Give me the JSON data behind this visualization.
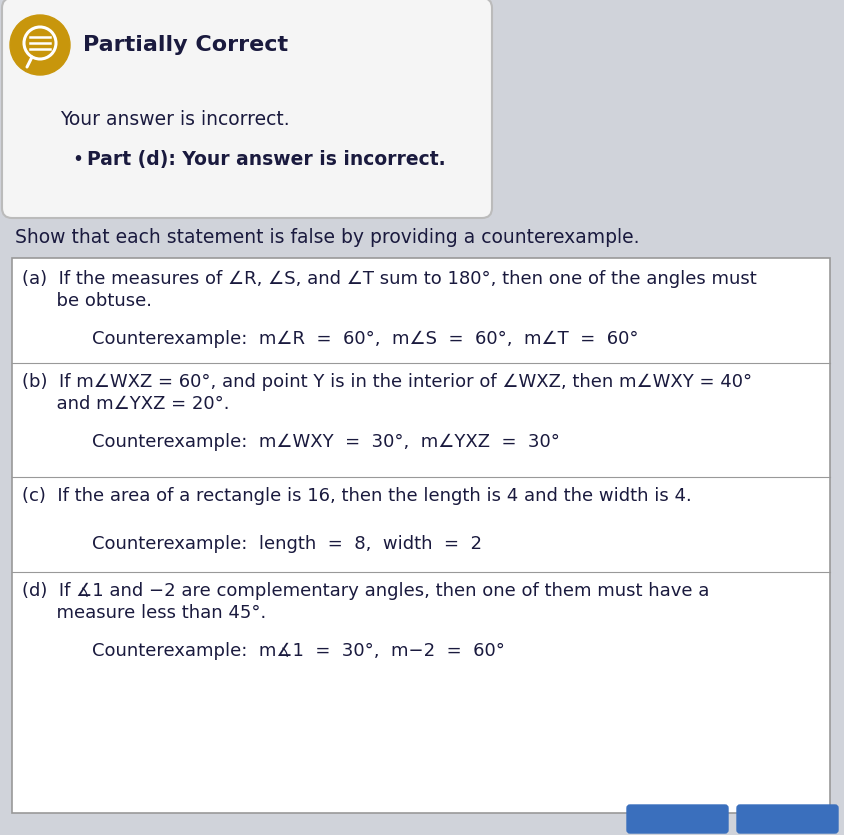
{
  "background_color": "#d0d3da",
  "header_box_bg": "#f5f5f5",
  "header_box_border": "#bbbbbb",
  "icon_color": "#c8960c",
  "title_text": "Partially Correct",
  "title_color": "#1a1a3e",
  "body_text_color": "#1a1a3e",
  "header_line1": "Your answer is incorrect.",
  "header_bullet": "Part (d): Your answer is incorrect.",
  "intro_text": "Show that each statement is false by providing a counterexample.",
  "content_box_bg": "#ffffff",
  "content_box_border": "#999999",
  "part_a_line1": "(a)  If the measures of ∠R, ∠S, and ∠T sum to 180°, then one of the angles must",
  "part_a_line2": "      be obtuse.",
  "part_a_ce": "Counterexample:  m∠R  =  60°,  m∠S  =  60°,  m∠T  =  60°",
  "part_b_line1": "(b)  If m∠WXZ = 60°, and point Y is in the interior of ∠WXZ, then m∠WXY = 40°",
  "part_b_line2": "      and m∠YXZ = 20°.",
  "part_b_ce": "Counterexample:  m∠WXY  =  30°,  m∠YXZ  =  30°",
  "part_c_line1": "(c)  If the area of a rectangle is 16, then the length is 4 and the width is 4.",
  "part_c_ce": "Counterexample:  length  =  8,  width  =  2",
  "part_d_line1": "(d)  If ∡1 and −2 are complementary angles, then one of them must have a",
  "part_d_line2": "      measure less than 45°.",
  "part_d_ce": "Counterexample:  m∡1  =  30°,  m−2  =  60°",
  "btn_color": "#3a6fbd"
}
